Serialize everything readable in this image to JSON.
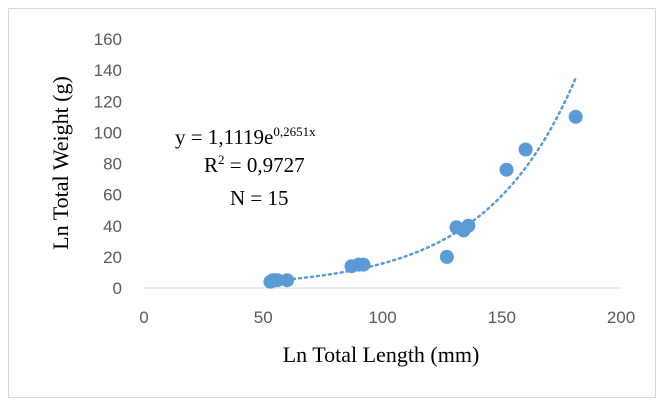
{
  "chart_data": {
    "type": "scatter",
    "xlabel": "Ln Total Length (mm)",
    "ylabel": "Ln Total Weight  (g)",
    "xlim": [
      0,
      200
    ],
    "ylim": [
      0,
      160
    ],
    "x_ticks": [
      "0",
      "50",
      "100",
      "150",
      "200"
    ],
    "y_ticks": [
      "0",
      "20",
      "40",
      "60",
      "80",
      "100",
      "120",
      "140",
      "160"
    ],
    "grid": false,
    "marker_color": "#5b9bd5",
    "trendline": {
      "type": "exponential",
      "a": 1.1119,
      "b": 0.2651,
      "x_from": 60,
      "x_to": 181,
      "style": "dotted"
    },
    "points": [
      {
        "x": 53,
        "y": 4
      },
      {
        "x": 54,
        "y": 5
      },
      {
        "x": 55,
        "y": 5
      },
      {
        "x": 56,
        "y": 5
      },
      {
        "x": 60,
        "y": 5
      },
      {
        "x": 87,
        "y": 14
      },
      {
        "x": 90,
        "y": 15
      },
      {
        "x": 92,
        "y": 15
      },
      {
        "x": 127,
        "y": 20
      },
      {
        "x": 131,
        "y": 39
      },
      {
        "x": 134,
        "y": 37
      },
      {
        "x": 136,
        "y": 40
      },
      {
        "x": 152,
        "y": 76
      },
      {
        "x": 160,
        "y": 89
      },
      {
        "x": 181,
        "y": 110
      }
    ],
    "annotations": {
      "equation_prefix": "y = 1,1119e",
      "equation_exponent": "0,2651x",
      "r2_prefix": "R",
      "r2_sup": "2",
      "r2_suffix": " = 0,9727",
      "n_label": "N = 15"
    }
  }
}
